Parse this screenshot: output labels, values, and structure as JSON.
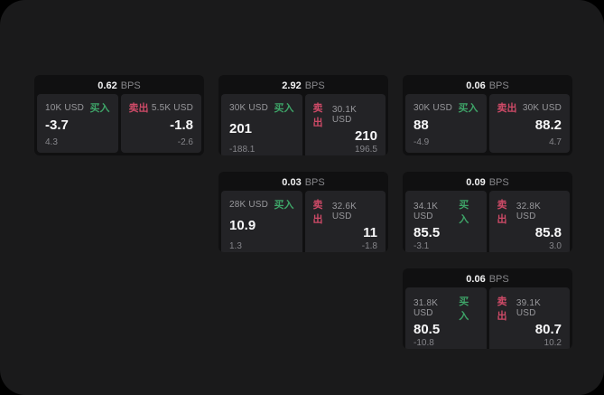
{
  "labels": {
    "buy": "买入",
    "sell": "卖出",
    "bps": "BPS"
  },
  "colors": {
    "page_background": "#000000",
    "surface_background": "#1a1a1b",
    "card_background": "#101011",
    "panel_background": "#232326",
    "text_primary": "#f7f7f8",
    "text_secondary": "#98989c",
    "buy_green": "#3ea468",
    "sell_red": "#cd4a67"
  },
  "cards": [
    {
      "bps": "0.62",
      "buy": {
        "amount": "10K USD",
        "value": "-3.7",
        "delta": "4.3"
      },
      "sell": {
        "amount": "5.5K USD",
        "value": "-1.8",
        "delta": "-2.6"
      }
    },
    {
      "bps": "2.92",
      "buy": {
        "amount": "30K USD",
        "value": "201",
        "delta": "-188.1"
      },
      "sell": {
        "amount": "30.1K USD",
        "value": "210",
        "delta": "196.5"
      }
    },
    {
      "bps": "0.06",
      "buy": {
        "amount": "30K USD",
        "value": "88",
        "delta": "-4.9"
      },
      "sell": {
        "amount": "30K USD",
        "value": "88.2",
        "delta": "4.7"
      }
    },
    {
      "bps": "0.03",
      "buy": {
        "amount": "28K USD",
        "value": "10.9",
        "delta": "1.3"
      },
      "sell": {
        "amount": "32.6K USD",
        "value": "11",
        "delta": "-1.8"
      }
    },
    {
      "bps": "0.09",
      "buy": {
        "amount": "34.1K USD",
        "value": "85.5",
        "delta": "-3.1"
      },
      "sell": {
        "amount": "32.8K USD",
        "value": "85.8",
        "delta": "3.0"
      }
    },
    {
      "bps": "0.06",
      "buy": {
        "amount": "31.8K USD",
        "value": "80.5",
        "delta": "-10.8"
      },
      "sell": {
        "amount": "39.1K USD",
        "value": "80.7",
        "delta": "10.2"
      }
    }
  ]
}
